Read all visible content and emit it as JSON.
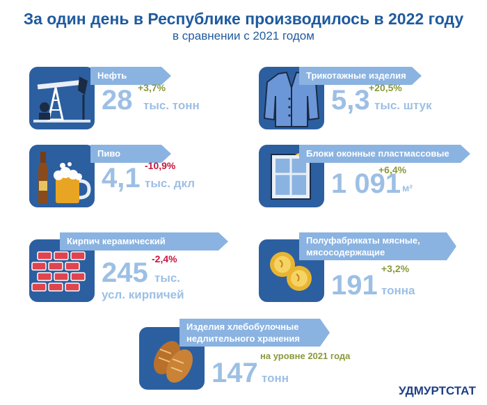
{
  "header": {
    "title": "За один день в Республике производилось в 2022 году",
    "subtitle": "в сравнении с 2021 годом"
  },
  "items": [
    {
      "label": "Нефть",
      "value": "28",
      "unit": "тыс. тонн",
      "change": "+3,7%",
      "icon": "oil-pump-icon"
    },
    {
      "label": "Трикотажные изделия",
      "value": "5,3",
      "unit": "тыс. штук",
      "change": "+20,5%",
      "icon": "sweater-icon"
    },
    {
      "label": "Пиво",
      "value": "4,1",
      "unit": "тыс. дкл",
      "change": "-10,9%",
      "icon": "beer-icon"
    },
    {
      "label": "Блоки оконные пластмассовые",
      "value": "1 091",
      "unit": "м²",
      "change": "+6,4%",
      "icon": "window-icon"
    },
    {
      "label": "Кирпич керамический",
      "value": "245",
      "unit": "тыс.",
      "unit2": "усл. кирпичей",
      "change": "-2,4%",
      "icon": "bricks-icon"
    },
    {
      "label_line1": "Полуфабрикаты мясные,",
      "label_line2": "мясосодержащие",
      "value": "191",
      "unit": "тонна",
      "change": "+3,2%",
      "icon": "dumplings-icon"
    },
    {
      "label_line1": "Изделия хлебобулочные",
      "label_line2": "недлительного хранения",
      "value": "147",
      "unit": "тонн",
      "change": "на уровне 2021 года",
      "icon": "bread-icon"
    }
  ],
  "brand": "УДМУРТСТАТ",
  "colors": {
    "dark_blue": "#2c5fa0",
    "light_blue": "#8ab3e1",
    "value_blue": "#9dbfe4",
    "positive": "#8a9a3a",
    "negative": "#c5173e",
    "title": "#1f5a9e"
  }
}
